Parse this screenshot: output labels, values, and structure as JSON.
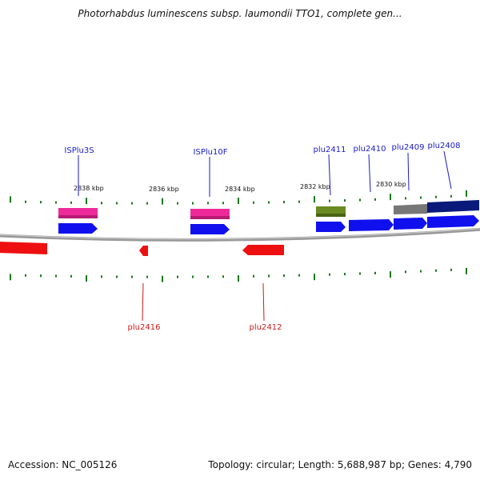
{
  "title": "Photorhabdus luminescens subsp. laumondii TTO1, complete gen...",
  "footer": {
    "accession": "Accession: NC_005126",
    "summary": "Topology: circular; Length: 5,688,987 bp; Genes: 4,790"
  },
  "colors": {
    "forward_cds": "#1010ee",
    "reverse_cds": "#ee1010",
    "is_element": "#ee2a9a",
    "green_feature": "#6a8a22",
    "gray_feature": "#777777",
    "navy_feature": "#0a1a7a",
    "tick": "#1a7a1a",
    "backbone": "#888888",
    "label_forward": "#1a1acc",
    "label_reverse": "#cc1a1a"
  },
  "scale_labels": [
    "2838 kbp",
    "2836 kbp",
    "2834 kbp",
    "2832 kbp",
    "2830 kbp"
  ],
  "top_labels": [
    "ISPlu3S",
    "ISPlu10F",
    "plu2411",
    "plu2410",
    "plu2409",
    "plu2408"
  ],
  "bottom_labels": [
    "plu2416",
    "plu2412"
  ]
}
